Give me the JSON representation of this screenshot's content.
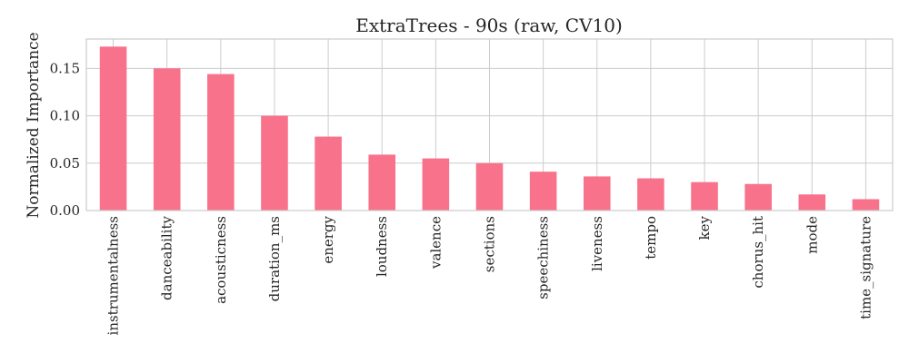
{
  "chart_data": {
    "type": "bar",
    "title": "ExtraTrees - 90s (raw, CV10)",
    "xlabel": "",
    "ylabel": "Normalized Importance",
    "categories": [
      "instrumentalness",
      "danceability",
      "acousticness",
      "duration_ms",
      "energy",
      "loudness",
      "valence",
      "sections",
      "speechiness",
      "liveness",
      "tempo",
      "key",
      "chorus_hit",
      "mode",
      "time_signature"
    ],
    "values": [
      0.173,
      0.15,
      0.144,
      0.1,
      0.078,
      0.059,
      0.055,
      0.05,
      0.041,
      0.036,
      0.034,
      0.03,
      0.028,
      0.017,
      0.012
    ],
    "ylim": [
      0,
      0.181
    ],
    "yticks": [
      0.0,
      0.05,
      0.1,
      0.15
    ],
    "ytick_labels": [
      "0.00",
      "0.05",
      "0.10",
      "0.15"
    ],
    "bar_color": "#f7728a",
    "grid": true,
    "legend": "none"
  }
}
